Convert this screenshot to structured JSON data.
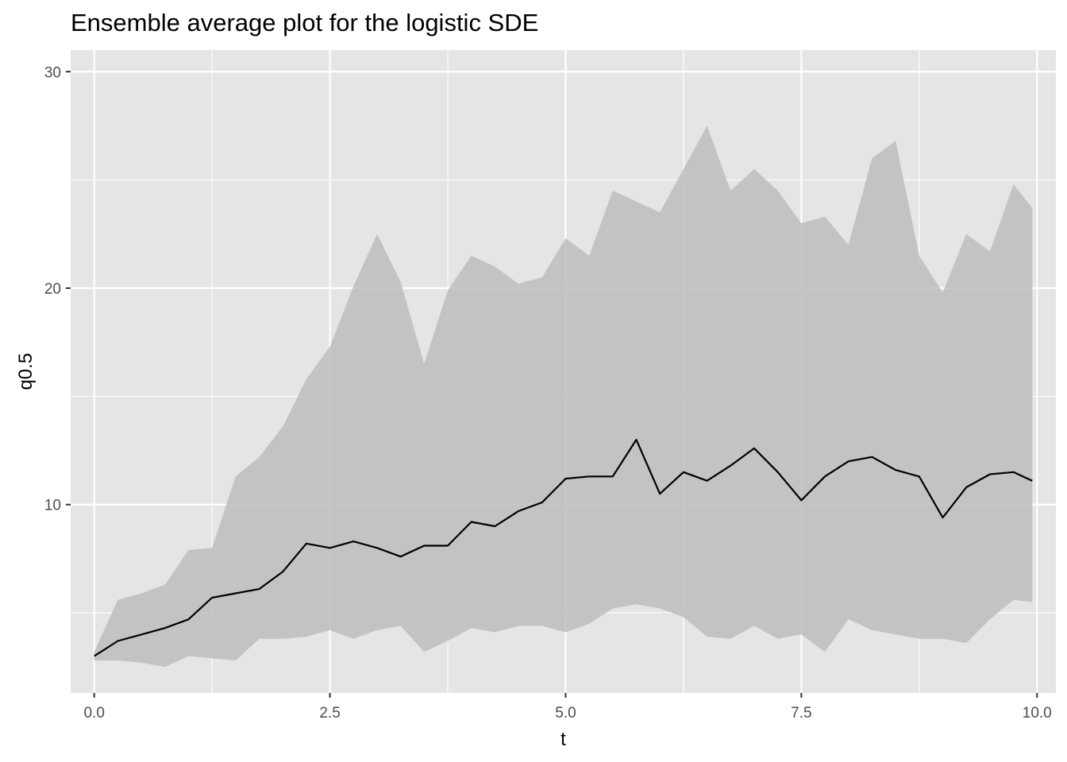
{
  "chart_data": {
    "type": "line",
    "title": "Ensemble average plot for the logistic SDE",
    "xlabel": "t",
    "ylabel": "q0.5",
    "xlim": [
      -0.25,
      10.2
    ],
    "ylim": [
      1.3,
      31.0
    ],
    "x_ticks": [
      0,
      2.5,
      5,
      7.5,
      10
    ],
    "x_tick_labels": [
      "0.0",
      "2.5",
      "5.0",
      "7.5",
      "10.0"
    ],
    "y_ticks": [
      10,
      20,
      30
    ],
    "y_tick_labels": [
      "10",
      "20",
      "30"
    ],
    "grid": true,
    "legend": "none",
    "colors": {
      "panel": "#e5e5e5",
      "grid": "#ffffff",
      "ribbon": "#bdbdbd",
      "line": "#000000"
    },
    "series": [
      {
        "x": [
          0,
          0.25,
          0.5,
          0.75,
          1.0,
          1.25,
          1.5,
          1.75,
          2.0,
          2.25,
          2.5,
          2.75,
          3.0,
          3.25,
          3.5,
          3.75,
          4.0,
          4.25,
          4.5,
          4.75,
          5.0,
          5.25,
          5.5,
          5.75,
          6.0,
          6.25,
          6.5,
          6.75,
          7.0,
          7.25,
          7.5,
          7.75,
          8.0,
          8.25,
          8.5,
          8.75,
          9.0,
          9.25,
          9.5,
          9.75,
          9.95
        ],
        "y": [
          3.0,
          3.7,
          4.0,
          4.3,
          4.7,
          5.7,
          5.9,
          6.1,
          6.9,
          8.2,
          8.0,
          8.3,
          8.0,
          7.6,
          8.1,
          8.1,
          9.2,
          9.0,
          9.7,
          10.1,
          11.2,
          11.3,
          11.3,
          13.0,
          10.5,
          11.5,
          11.1,
          11.8,
          12.6,
          11.5,
          10.2,
          11.3,
          12.0,
          12.2,
          11.6,
          11.3,
          9.4,
          10.8,
          11.4,
          11.5,
          11.1
        ],
        "lower": [
          2.8,
          2.8,
          2.7,
          2.5,
          3.0,
          2.9,
          2.8,
          3.8,
          3.8,
          3.9,
          4.2,
          3.8,
          4.2,
          4.4,
          3.2,
          3.7,
          4.3,
          4.1,
          4.4,
          4.4,
          4.1,
          4.5,
          5.2,
          5.4,
          5.2,
          4.8,
          3.9,
          3.8,
          4.4,
          3.8,
          4.0,
          3.2,
          4.7,
          4.2,
          4.0,
          3.8,
          3.8,
          3.6,
          4.7,
          5.6,
          5.5
        ],
        "upper": [
          3.2,
          5.6,
          5.9,
          6.3,
          7.9,
          8.0,
          11.3,
          12.2,
          13.6,
          15.8,
          17.3,
          20.1,
          22.5,
          20.3,
          16.5,
          19.9,
          21.5,
          21.0,
          20.2,
          20.5,
          22.3,
          21.5,
          24.5,
          24.0,
          23.5,
          25.5,
          27.5,
          24.5,
          25.5,
          24.5,
          23.0,
          23.3,
          22.0,
          26.0,
          26.8,
          21.5,
          19.8,
          22.5,
          21.7,
          24.8,
          23.7
        ]
      }
    ]
  }
}
